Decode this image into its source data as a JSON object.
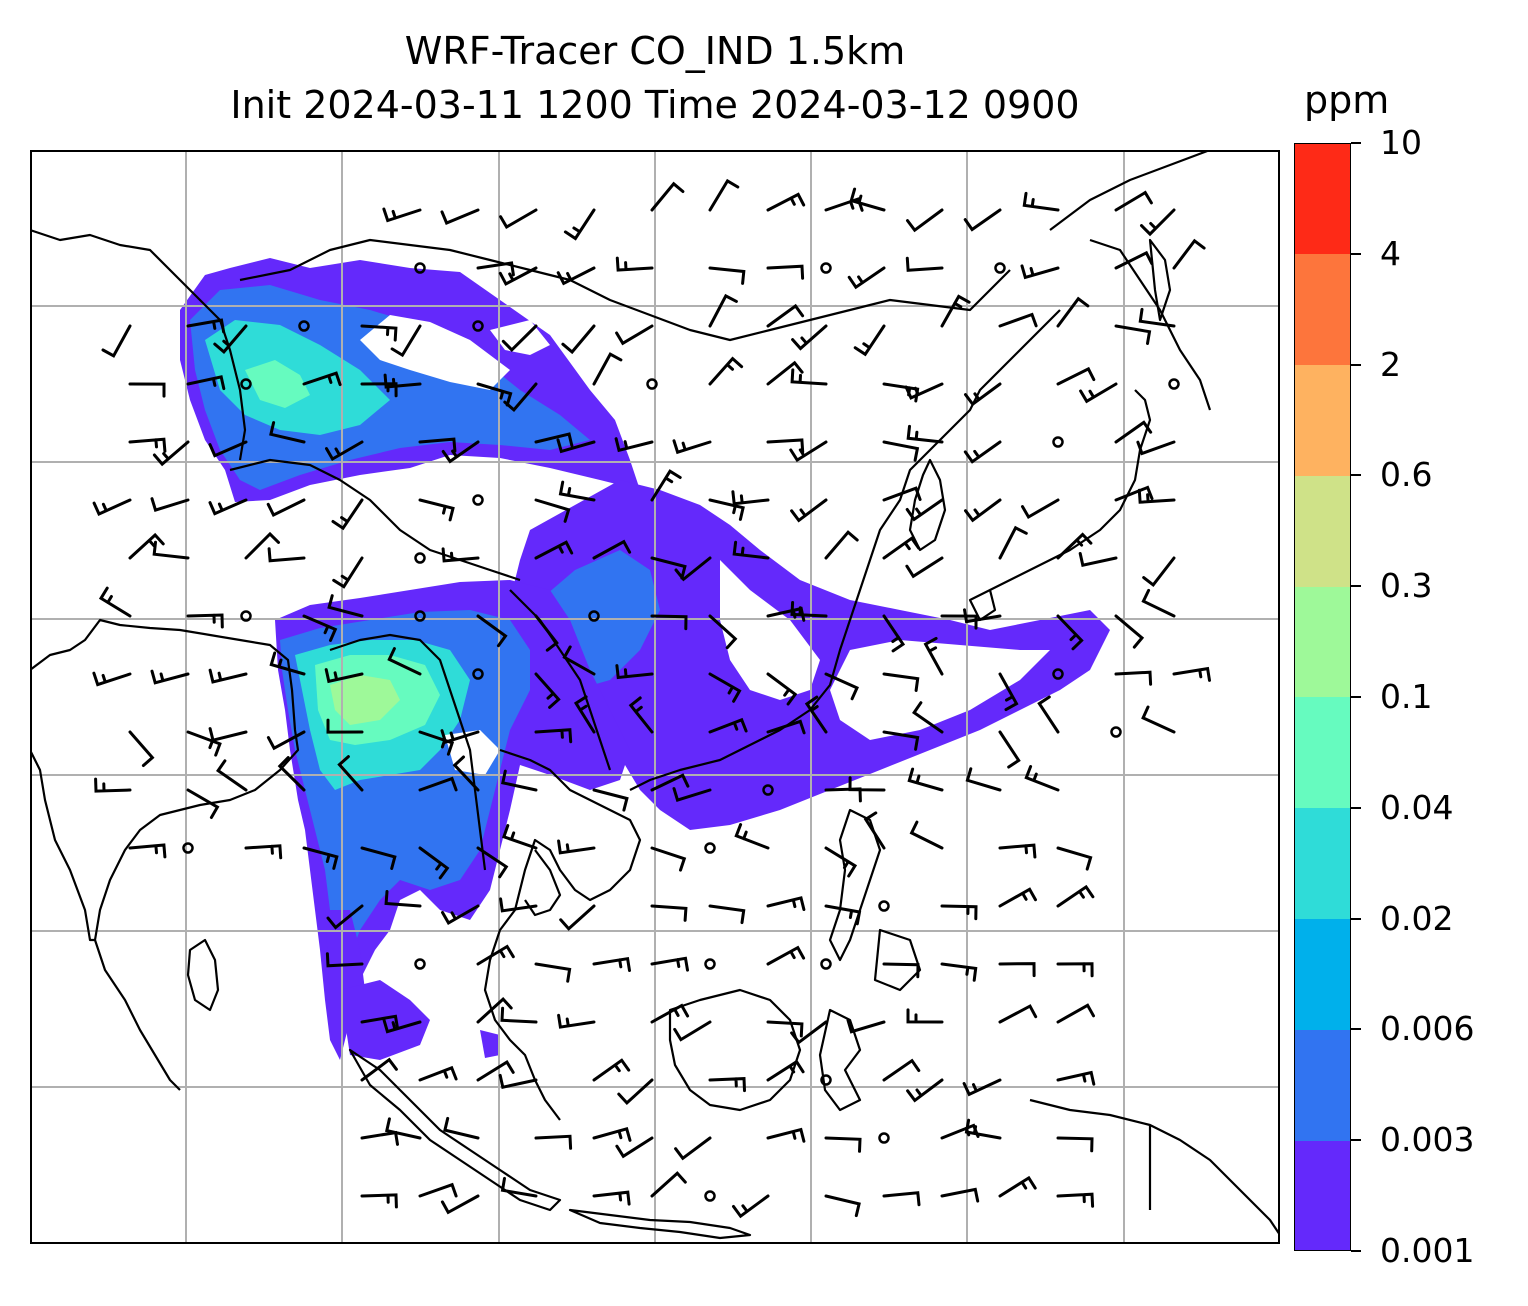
{
  "title": {
    "line1": "WRF-Tracer CO_IND 1.5km",
    "line2": "Init 2024-03-11 1200 Time 2024-03-12 0900"
  },
  "colorbar": {
    "unit": "ppm",
    "levels": [
      "0.001",
      "0.003",
      "0.006",
      "0.02",
      "0.04",
      "0.1",
      "0.3",
      "0.6",
      "2",
      "4",
      "10"
    ],
    "colors": [
      "#6429fb",
      "#3174f1",
      "#00b0eb",
      "#2fdcd8",
      "#66fbbf",
      "#9ef999",
      "#cfe288",
      "#feb260",
      "#fd753c",
      "#fe2a17"
    ]
  },
  "map": {
    "gridlines": true,
    "coastline_color": "#000000",
    "grid_color": "#b0b0b0"
  }
}
